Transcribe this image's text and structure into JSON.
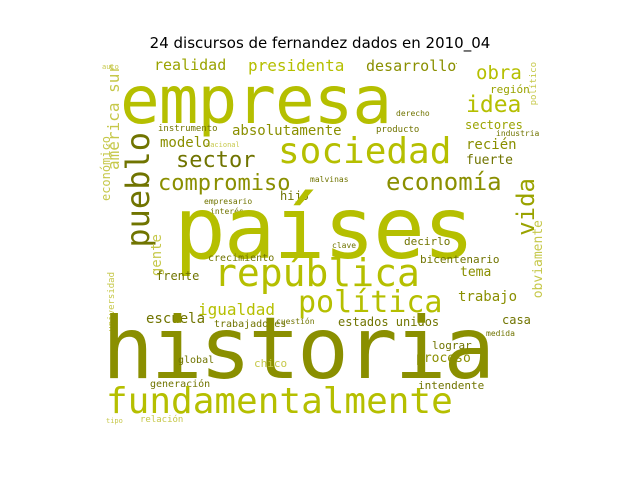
{
  "title": "24 discursos de fernandez dados en 2010_04",
  "words": {
    "empresa": "empresa",
    "paises": "países",
    "historia": "historia",
    "fundamentalmente": "fundamentalmente",
    "sociedad": "sociedad",
    "republica": "república",
    "politica": "política",
    "pueblo": "pueblo",
    "compromiso": "compromiso",
    "economia": "economía",
    "vida": "vida",
    "sector": "sector",
    "obra": "obra",
    "idea": "idea",
    "presidenta": "presidenta",
    "desarrollo": "desarrollo",
    "realidad": "realidad",
    "america_sur": "américa sur",
    "absolutamente": "absolutamente",
    "modelo": "modelo",
    "igualdad": "igualdad",
    "trabajo": "trabajo",
    "obviamente": "obviamente",
    "sectores": "sectores",
    "region": "región",
    "fuerte": "fuerte",
    "reci": "recién",
    "tema": "tema",
    "hijo": "hijo",
    "decirlo": "decirlo",
    "bicentenario": "bicentenario",
    "estados_unidos": "estados unidos",
    "casa": "casa",
    "frente": "frente",
    "escuela": "escuela",
    "trabajadores": "trabajadores",
    "proceso": "proceso",
    "lograr": "lograr",
    "intendente": "intendente",
    "gente": "gente",
    "economico": "económico",
    "crecimiento": "crecimiento",
    "instrumento": "instrumento",
    "producto": "producto",
    "industria": "industria",
    "global": "global",
    "generacion": "generación",
    "chico": "chico",
    "universidad": "universidad",
    "interes": "interés",
    "empresario": "empresario",
    "malvinas": "malvinas",
    "clave": "clave",
    "cuestion": "cuestión",
    "relacion": "relación",
    "nacional": "nacional",
    "derecho": "derecho",
    "medida": "medida",
    "politico": "político"
  }
}
